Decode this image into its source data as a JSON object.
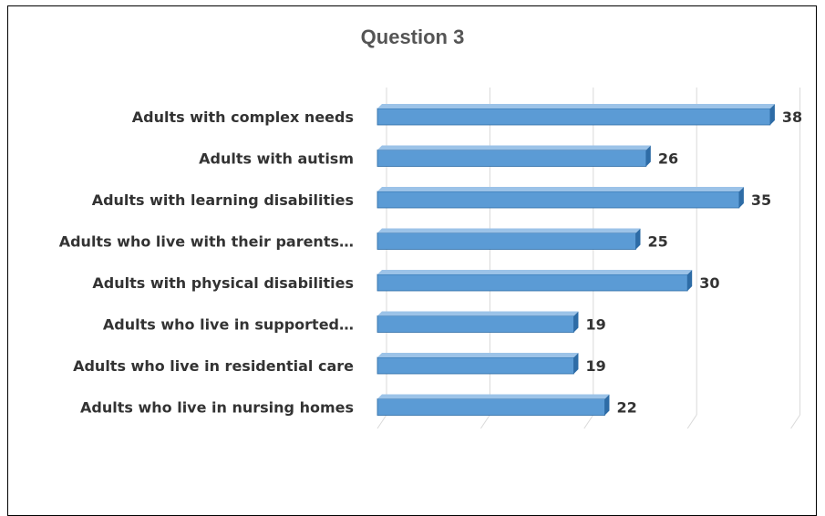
{
  "chart_data": {
    "type": "bar",
    "orientation": "horizontal",
    "title": "Question 3",
    "xlabel": "",
    "ylabel": "",
    "categories": [
      "Adults with complex needs",
      "Adults with autism",
      "Adults with learning disabilities",
      "Adults who live with their parents…",
      "Adults with physical disabilities",
      "Adults who live in supported…",
      "Adults who live in residential care",
      "Adults who live in nursing homes"
    ],
    "values": [
      38,
      26,
      35,
      25,
      30,
      19,
      19,
      22
    ],
    "xlim": [
      0,
      40
    ],
    "grid": true,
    "legend": "none",
    "data_labels": true,
    "colors": {
      "bar": "#5b9bd5",
      "bar_dark": "#2e6ca6",
      "grid": "#d9d9d9",
      "text": "#333333"
    }
  }
}
